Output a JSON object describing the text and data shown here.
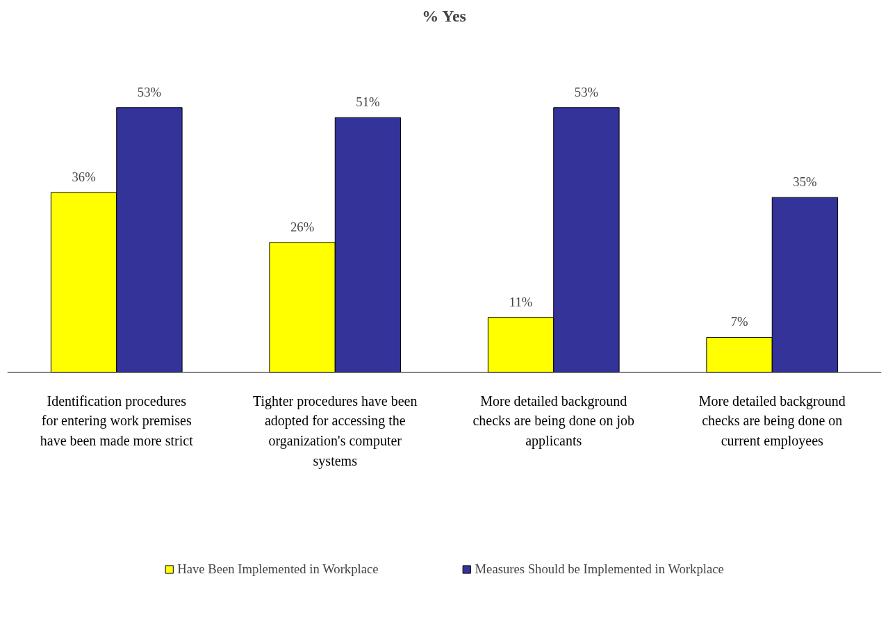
{
  "chart_data": {
    "type": "bar",
    "title": "% Yes",
    "categories": [
      "Identification procedures for entering work premises have been made more strict",
      "Tighter procedures have been adopted for accessing the organization's computer systems",
      "More detailed background checks are being done on job applicants",
      "More detailed background checks are being done on current employees"
    ],
    "series": [
      {
        "name": "Have Been Implemented in Workplace",
        "color": "#ffff00",
        "values": [
          36,
          26,
          11,
          7
        ],
        "value_labels": [
          "36%",
          "26%",
          "11%",
          "7%"
        ]
      },
      {
        "name": "Measures Should be Implemented in Workplace",
        "color": "#333399",
        "values": [
          53,
          51,
          53,
          35
        ],
        "value_labels": [
          "53%",
          "51%",
          "53%",
          "35%"
        ]
      }
    ],
    "grid": false,
    "legend": "bottom"
  }
}
